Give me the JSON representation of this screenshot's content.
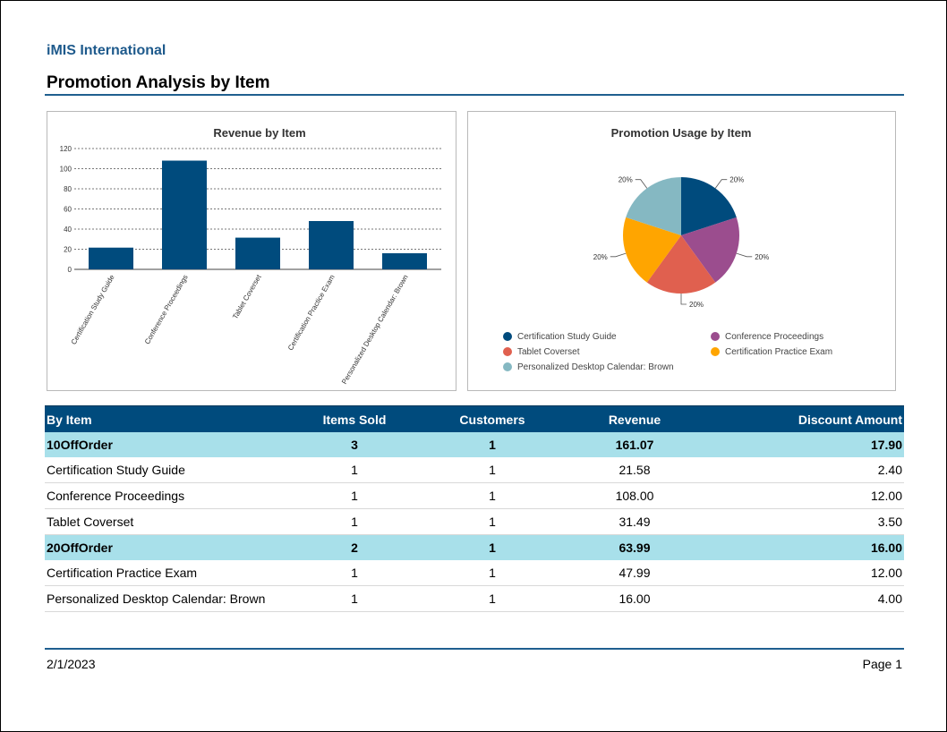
{
  "header": {
    "org_name": "iMIS International",
    "report_title": "Promotion Analysis by Item"
  },
  "chart_data": [
    {
      "type": "bar",
      "title": "Revenue by Item",
      "categories": [
        "Certification Study Guide",
        "Conference Proceedings",
        "Tablet Coverset",
        "Certification Practice Exam",
        "Personalized Desktop Calendar: Brown"
      ],
      "values": [
        21.58,
        108.0,
        31.49,
        47.99,
        16.0
      ],
      "ylim": [
        0,
        120
      ],
      "yticks": [
        "0",
        "20",
        "40",
        "60",
        "80",
        "100",
        "120"
      ],
      "grid": true,
      "color": "#004b7d"
    },
    {
      "type": "pie",
      "title": "Promotion Usage by Item",
      "labels": [
        "Certification Study Guide",
        "Conference Proceedings",
        "Tablet Coverset",
        "Certification Practice Exam",
        "Personalized Desktop Calendar: Brown"
      ],
      "values": [
        20,
        20,
        20,
        20,
        20
      ],
      "data_labels": [
        "20%",
        "20%",
        "20%",
        "20%",
        "20%"
      ],
      "colors": [
        "#004b7d",
        "#9b4d8e",
        "#e0604f",
        "#ffa500",
        "#85b8c2"
      ],
      "legend": "bottom"
    }
  ],
  "table": {
    "headers": [
      "By Item",
      "Items Sold",
      "Customers",
      "Revenue",
      "Discount Amount"
    ],
    "rows": [
      {
        "group": true,
        "cells": [
          "10OffOrder",
          "3",
          "1",
          "161.07",
          "17.90"
        ]
      },
      {
        "group": false,
        "cells": [
          "Certification Study Guide",
          "1",
          "1",
          "21.58",
          "2.40"
        ]
      },
      {
        "group": false,
        "cells": [
          "Conference Proceedings",
          "1",
          "1",
          "108.00",
          "12.00"
        ]
      },
      {
        "group": false,
        "cells": [
          "Tablet Coverset",
          "1",
          "1",
          "31.49",
          "3.50"
        ]
      },
      {
        "group": true,
        "cells": [
          "20OffOrder",
          "2",
          "1",
          "63.99",
          "16.00"
        ]
      },
      {
        "group": false,
        "cells": [
          "Certification Practice Exam",
          "1",
          "1",
          "47.99",
          "12.00"
        ]
      },
      {
        "group": false,
        "cells": [
          "Personalized Desktop Calendar: Brown",
          "1",
          "1",
          "16.00",
          "4.00"
        ]
      }
    ]
  },
  "footer": {
    "date": "2/1/2023",
    "page": "Page 1"
  }
}
